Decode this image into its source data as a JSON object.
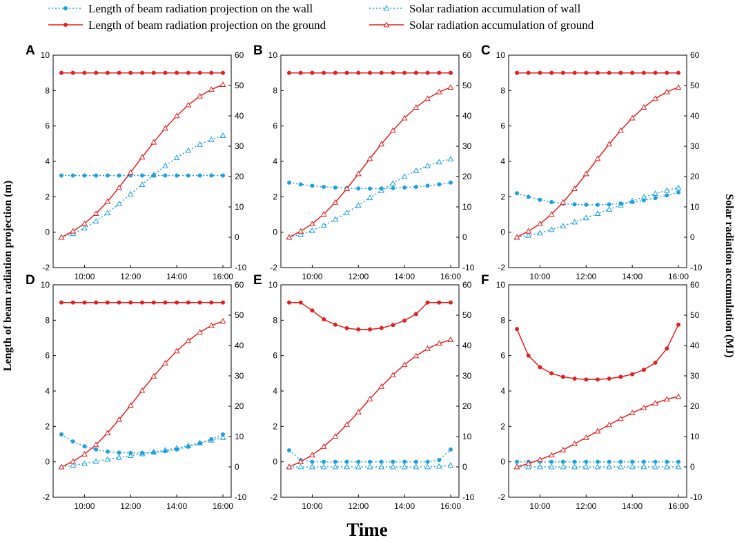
{
  "figure": {
    "xlabel": "Time",
    "ylabel_left": "Length of beam radiation projection (m)",
    "ylabel_right": "Solar radiation accumulation (MJ)"
  },
  "legend": [
    {
      "key": "wall_len",
      "label": "Length of beam radiation projection on the wall",
      "color": "#1ba1e2",
      "dash": "dotted",
      "marker": "circle-filled"
    },
    {
      "key": "wall_acc",
      "label": "Solar radiation accumulation of wall",
      "color": "#1ba1e2",
      "dash": "dotted",
      "marker": "triangle-open"
    },
    {
      "key": "ground_len",
      "label": "Length of beam radiation projection on the ground",
      "color": "#e02020",
      "dash": "solid",
      "marker": "circle-filled"
    },
    {
      "key": "ground_acc",
      "label": "Solar radiation accumulation of ground",
      "color": "#e02020",
      "dash": "solid",
      "marker": "triangle-open"
    }
  ],
  "chart_data": [
    {
      "panel": "A",
      "type": "line",
      "x": [
        "9:00",
        "9:30",
        "10:00",
        "10:30",
        "11:00",
        "11:30",
        "12:00",
        "12:30",
        "13:00",
        "13:30",
        "14:00",
        "14:30",
        "15:00",
        "15:30",
        "16:00"
      ],
      "xticks": [
        "10:00",
        "12:00",
        "14:00",
        "16:00"
      ],
      "ylim_left": [
        -2,
        10
      ],
      "yticks_left": [
        "-2",
        "0",
        "2",
        "4",
        "6",
        "8",
        "10"
      ],
      "ylim_right": [
        -10,
        60
      ],
      "yticks_right": [
        "-10",
        "0",
        "10",
        "20",
        "30",
        "40",
        "50",
        "60"
      ],
      "series": [
        {
          "key": "wall_len",
          "axis": "left",
          "values": [
            3.2,
            3.2,
            3.2,
            3.2,
            3.2,
            3.2,
            3.2,
            3.2,
            3.2,
            3.2,
            3.2,
            3.2,
            3.2,
            3.2,
            3.2
          ]
        },
        {
          "key": "wall_acc",
          "axis": "right",
          "values": [
            0,
            1.2,
            3.0,
            5.3,
            8.0,
            11.0,
            14.2,
            17.4,
            20.5,
            23.5,
            26.2,
            28.6,
            30.6,
            32.2,
            33.5
          ]
        },
        {
          "key": "ground_len",
          "axis": "left",
          "values": [
            9,
            9,
            9,
            9,
            9,
            9,
            9,
            9,
            9,
            9,
            9,
            9,
            9,
            9,
            9
          ]
        },
        {
          "key": "ground_acc",
          "axis": "right",
          "values": [
            0,
            2.0,
            4.5,
            7.8,
            11.8,
            16.4,
            21.4,
            26.4,
            31.3,
            35.9,
            40.0,
            43.6,
            46.5,
            48.7,
            50.3
          ]
        }
      ]
    },
    {
      "panel": "B",
      "type": "line",
      "x": [
        "9:00",
        "9:30",
        "10:00",
        "10:30",
        "11:00",
        "11:30",
        "12:00",
        "12:30",
        "13:00",
        "13:30",
        "14:00",
        "14:30",
        "15:00",
        "15:30",
        "16:00"
      ],
      "xticks": [
        "10:00",
        "12:00",
        "14:00",
        "16:00"
      ],
      "ylim_left": [
        -2,
        10
      ],
      "yticks_left": [
        "-2",
        "0",
        "2",
        "4",
        "6",
        "8",
        "10"
      ],
      "ylim_right": [
        -10,
        60
      ],
      "yticks_right": [
        "-10",
        "0",
        "10",
        "20",
        "30",
        "40",
        "50",
        "60"
      ],
      "series": [
        {
          "key": "wall_len",
          "axis": "left",
          "values": [
            2.8,
            2.7,
            2.62,
            2.56,
            2.52,
            2.49,
            2.47,
            2.46,
            2.47,
            2.49,
            2.52,
            2.56,
            2.62,
            2.7,
            2.8
          ]
        },
        {
          "key": "wall_acc",
          "axis": "right",
          "values": [
            0,
            0.9,
            2.2,
            3.9,
            5.9,
            8.1,
            10.5,
            13.0,
            15.4,
            17.8,
            20.0,
            21.9,
            23.5,
            24.8,
            25.8
          ]
        },
        {
          "key": "ground_len",
          "axis": "left",
          "values": [
            9,
            9,
            9,
            9,
            9,
            9,
            9,
            9,
            9,
            9,
            9,
            9,
            9,
            9,
            9
          ]
        },
        {
          "key": "ground_acc",
          "axis": "right",
          "values": [
            0,
            2.0,
            4.4,
            7.6,
            11.5,
            16.0,
            20.9,
            25.9,
            30.7,
            35.2,
            39.3,
            42.8,
            45.7,
            47.9,
            49.4
          ]
        }
      ]
    },
    {
      "panel": "C",
      "type": "line",
      "x": [
        "9:00",
        "9:30",
        "10:00",
        "10:30",
        "11:00",
        "11:30",
        "12:00",
        "12:30",
        "13:00",
        "13:30",
        "14:00",
        "14:30",
        "15:00",
        "15:30",
        "16:00"
      ],
      "xticks": [
        "10:00",
        "12:00",
        "14:00",
        "16:00"
      ],
      "ylim_left": [
        -2,
        10
      ],
      "yticks_left": [
        "-2",
        "0",
        "2",
        "4",
        "6",
        "8",
        "10"
      ],
      "ylim_right": [
        -10,
        60
      ],
      "yticks_right": [
        "-10",
        "0",
        "10",
        "20",
        "30",
        "40",
        "50",
        "60"
      ],
      "series": [
        {
          "key": "wall_len",
          "axis": "left",
          "values": [
            2.2,
            2.0,
            1.83,
            1.7,
            1.62,
            1.57,
            1.55,
            1.55,
            1.57,
            1.62,
            1.7,
            1.8,
            1.93,
            2.08,
            2.25
          ]
        },
        {
          "key": "wall_acc",
          "axis": "right",
          "values": [
            0,
            0.6,
            1.4,
            2.5,
            3.7,
            5.0,
            6.4,
            7.8,
            9.2,
            10.6,
            12.0,
            13.2,
            14.4,
            15.4,
            16.3
          ]
        },
        {
          "key": "ground_len",
          "axis": "left",
          "values": [
            9,
            9,
            9,
            9,
            9,
            9,
            9,
            9,
            9,
            9,
            9,
            9,
            9,
            9,
            9
          ]
        },
        {
          "key": "ground_acc",
          "axis": "right",
          "values": [
            0,
            2.0,
            4.4,
            7.6,
            11.5,
            16.0,
            20.9,
            25.9,
            30.7,
            35.2,
            39.3,
            42.8,
            45.7,
            47.9,
            49.4
          ]
        }
      ]
    },
    {
      "panel": "D",
      "type": "line",
      "x": [
        "9:00",
        "9:30",
        "10:00",
        "10:30",
        "11:00",
        "11:30",
        "12:00",
        "12:30",
        "13:00",
        "13:30",
        "14:00",
        "14:30",
        "15:00",
        "15:30",
        "16:00"
      ],
      "xticks": [
        "10:00",
        "12:00",
        "14:00",
        "16:00"
      ],
      "ylim_left": [
        -2,
        10
      ],
      "yticks_left": [
        "-2",
        "0",
        "2",
        "4",
        "6",
        "8",
        "10"
      ],
      "ylim_right": [
        -10,
        60
      ],
      "yticks_right": [
        "-10",
        "0",
        "10",
        "20",
        "30",
        "40",
        "50",
        "60"
      ],
      "series": [
        {
          "key": "wall_len",
          "axis": "left",
          "values": [
            1.55,
            1.15,
            0.88,
            0.7,
            0.58,
            0.52,
            0.5,
            0.5,
            0.53,
            0.6,
            0.7,
            0.85,
            1.05,
            1.28,
            1.55
          ]
        },
        {
          "key": "wall_acc",
          "axis": "right",
          "values": [
            0,
            0.5,
            1.1,
            1.8,
            2.5,
            3.1,
            3.7,
            4.3,
            4.9,
            5.5,
            6.2,
            7.0,
            7.9,
            8.8,
            9.7
          ]
        },
        {
          "key": "ground_len",
          "axis": "left",
          "values": [
            9,
            9,
            9,
            9,
            9,
            9,
            9,
            9,
            9,
            9,
            9,
            9,
            9,
            9,
            9
          ]
        },
        {
          "key": "ground_acc",
          "axis": "right",
          "values": [
            0,
            1.8,
            4.2,
            7.3,
            11.2,
            15.6,
            20.3,
            25.2,
            29.9,
            34.2,
            38.2,
            41.6,
            44.4,
            46.6,
            48.0
          ]
        }
      ]
    },
    {
      "panel": "E",
      "type": "line",
      "x": [
        "9:00",
        "9:30",
        "10:00",
        "10:30",
        "11:00",
        "11:30",
        "12:00",
        "12:30",
        "13:00",
        "13:30",
        "14:00",
        "14:30",
        "15:00",
        "15:30",
        "16:00"
      ],
      "xticks": [
        "10:00",
        "12:00",
        "14:00",
        "16:00"
      ],
      "ylim_left": [
        -2,
        10
      ],
      "yticks_left": [
        "-2",
        "0",
        "2",
        "4",
        "6",
        "8",
        "10"
      ],
      "ylim_right": [
        -10,
        60
      ],
      "yticks_right": [
        "-10",
        "0",
        "10",
        "20",
        "30",
        "40",
        "50",
        "60"
      ],
      "series": [
        {
          "key": "wall_len",
          "axis": "left",
          "values": [
            0.65,
            0.1,
            0,
            0,
            0,
            0,
            0,
            0,
            0,
            0,
            0,
            0,
            0,
            0.1,
            0.7
          ]
        },
        {
          "key": "wall_acc",
          "axis": "right",
          "values": [
            0,
            0,
            0,
            0,
            0,
            0,
            0,
            0,
            0,
            0,
            0,
            0,
            0,
            0.2,
            0.5
          ]
        },
        {
          "key": "ground_len",
          "axis": "left",
          "values": [
            9,
            9,
            8.55,
            8.05,
            7.75,
            7.55,
            7.48,
            7.48,
            7.56,
            7.73,
            7.98,
            8.35,
            9,
            9,
            9
          ]
        },
        {
          "key": "ground_acc",
          "axis": "right",
          "values": [
            0,
            1.7,
            3.9,
            6.7,
            10.1,
            14.0,
            18.1,
            22.4,
            26.5,
            30.3,
            33.7,
            36.6,
            39.0,
            40.7,
            41.9
          ]
        }
      ]
    },
    {
      "panel": "F",
      "type": "line",
      "x": [
        "9:00",
        "9:30",
        "10:00",
        "10:30",
        "11:00",
        "11:30",
        "12:00",
        "12:30",
        "13:00",
        "13:30",
        "14:00",
        "14:30",
        "15:00",
        "15:30",
        "16:00"
      ],
      "xticks": [
        "10:00",
        "12:00",
        "14:00",
        "16:00"
      ],
      "ylim_left": [
        -2,
        10
      ],
      "yticks_left": [
        "-2",
        "0",
        "2",
        "4",
        "6",
        "8",
        "10"
      ],
      "ylim_right": [
        -10,
        60
      ],
      "yticks_right": [
        "-10",
        "0",
        "10",
        "20",
        "30",
        "40",
        "50",
        "60"
      ],
      "series": [
        {
          "key": "wall_len",
          "axis": "left",
          "values": [
            0,
            0,
            0,
            0,
            0,
            0,
            0,
            0,
            0,
            0,
            0,
            0,
            0,
            0,
            0
          ]
        },
        {
          "key": "wall_acc",
          "axis": "right",
          "values": [
            0,
            0,
            0,
            0,
            0,
            0,
            0,
            0,
            0,
            0,
            0,
            0,
            0,
            0,
            0
          ]
        },
        {
          "key": "ground_len",
          "axis": "left",
          "values": [
            7.5,
            6.0,
            5.35,
            5.0,
            4.8,
            4.7,
            4.65,
            4.65,
            4.7,
            4.8,
            4.95,
            5.2,
            5.6,
            6.4,
            7.75
          ]
        },
        {
          "key": "ground_acc",
          "axis": "right",
          "values": [
            0,
            1.1,
            2.4,
            3.9,
            5.6,
            7.6,
            9.7,
            11.8,
            13.9,
            15.9,
            17.8,
            19.5,
            21.0,
            22.3,
            23.2
          ]
        }
      ]
    }
  ]
}
